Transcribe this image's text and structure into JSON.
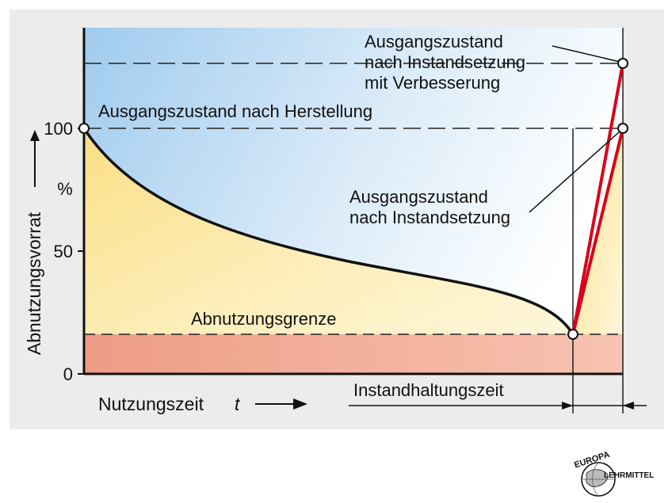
{
  "diagram": {
    "y_axis_label": "Abnutzungsvorrat",
    "y_unit": "%",
    "y_ticks": [
      "100",
      "50",
      "0"
    ],
    "x_axis_label": "Nutzungszeit",
    "x_axis_var": "t",
    "labels": {
      "initial_state": "Ausgangszustand nach Herstellung",
      "improved_line1": "Ausgangszustand",
      "improved_line2": "nach Instandsetzung",
      "improved_line3": "mit Verbesserung",
      "repaired_line1": "Ausgangszustand",
      "repaired_line2": "nach Instandsetzung",
      "wear_limit": "Abnutzungsgrenze",
      "maintenance_time": "Instandhaltungszeit"
    },
    "colors": {
      "panel_background": "#ececec",
      "wear_reserve_fill": "#fde8a0",
      "limit_zone_fill": "#f0a890",
      "sky_fill": "#bcd9f1",
      "curve": "#111111",
      "repair_lines": "#d9001b"
    },
    "values": {
      "wear_limit_percent": 17,
      "improved_level_percent": 124
    }
  },
  "logo": {
    "top_text": "EUROPA",
    "side_text": "LEHRMITTEL"
  }
}
